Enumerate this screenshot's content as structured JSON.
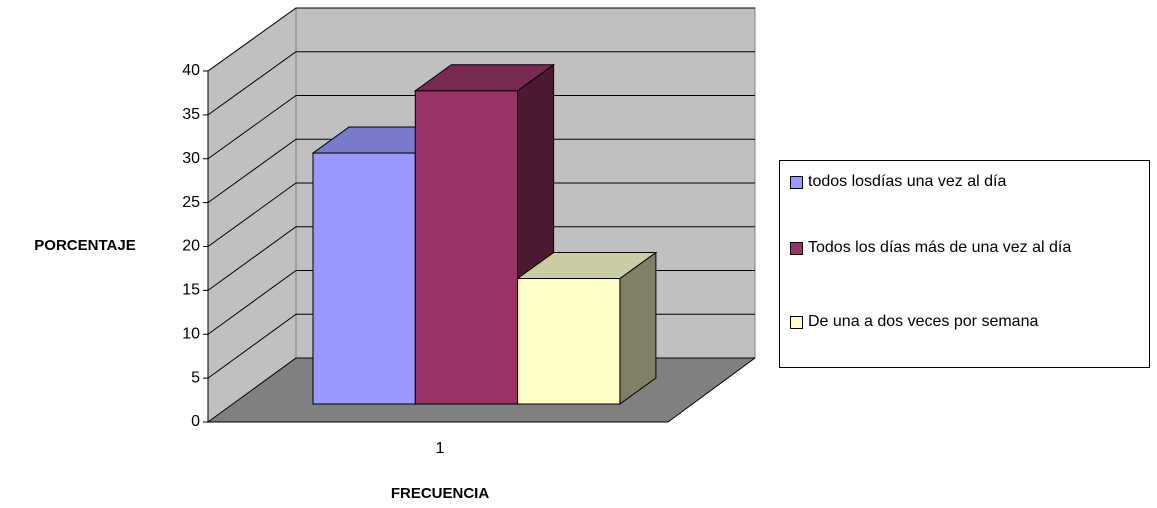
{
  "chart_data": {
    "type": "bar3d",
    "categories": [
      "1"
    ],
    "series": [
      {
        "name": "todos losdías una vez al día",
        "color": "#9999ff",
        "values": [
          28.6
        ]
      },
      {
        "name": "Todos los días más de una vez al día",
        "color": "#993366",
        "values": [
          35.7
        ]
      },
      {
        "name": "De una a dos veces por semana",
        "color": "#ffffcc",
        "values": [
          14.3
        ]
      }
    ],
    "ylim": [
      0,
      40
    ],
    "yticks": [
      0,
      5,
      10,
      15,
      20,
      25,
      30,
      35,
      40
    ],
    "y_label": "PORCENTAJE",
    "x_label": "FRECUENCIA",
    "grid": true,
    "legend": "right"
  }
}
